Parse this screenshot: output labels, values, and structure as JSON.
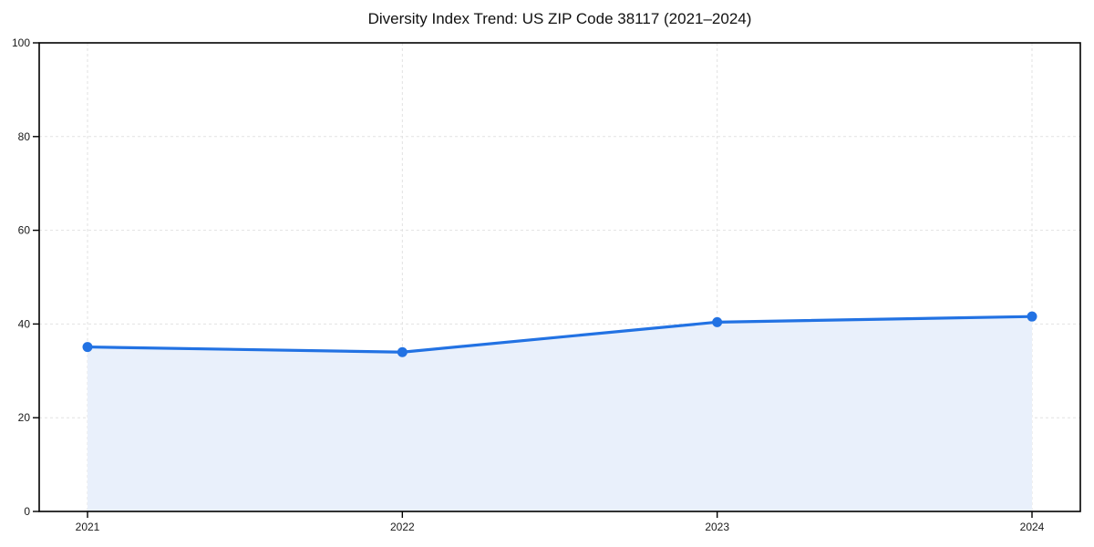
{
  "chart_data": {
    "type": "area",
    "title": "Diversity Index Trend: US ZIP Code 38117 (2021–2024)",
    "categories": [
      "2021",
      "2022",
      "2023",
      "2024"
    ],
    "series": [
      {
        "name": "Diversity Index",
        "values": [
          35.1,
          34.0,
          40.4,
          41.6
        ]
      }
    ],
    "xlabel": "",
    "ylabel": "",
    "ylim": [
      0,
      100
    ],
    "yticks": [
      0,
      20,
      40,
      60,
      80,
      100
    ],
    "grid": true,
    "grid_style": "dashed",
    "legend": "none",
    "marker": "circle",
    "colors": {
      "line": "#2272e3",
      "marker": "#2272e3",
      "fill": "#e9f0fb",
      "grid": "#e2e2e2",
      "spine": "#000000",
      "tick_text": "#1a1a1a",
      "title_text": "#111111",
      "background": "#ffffff"
    }
  }
}
